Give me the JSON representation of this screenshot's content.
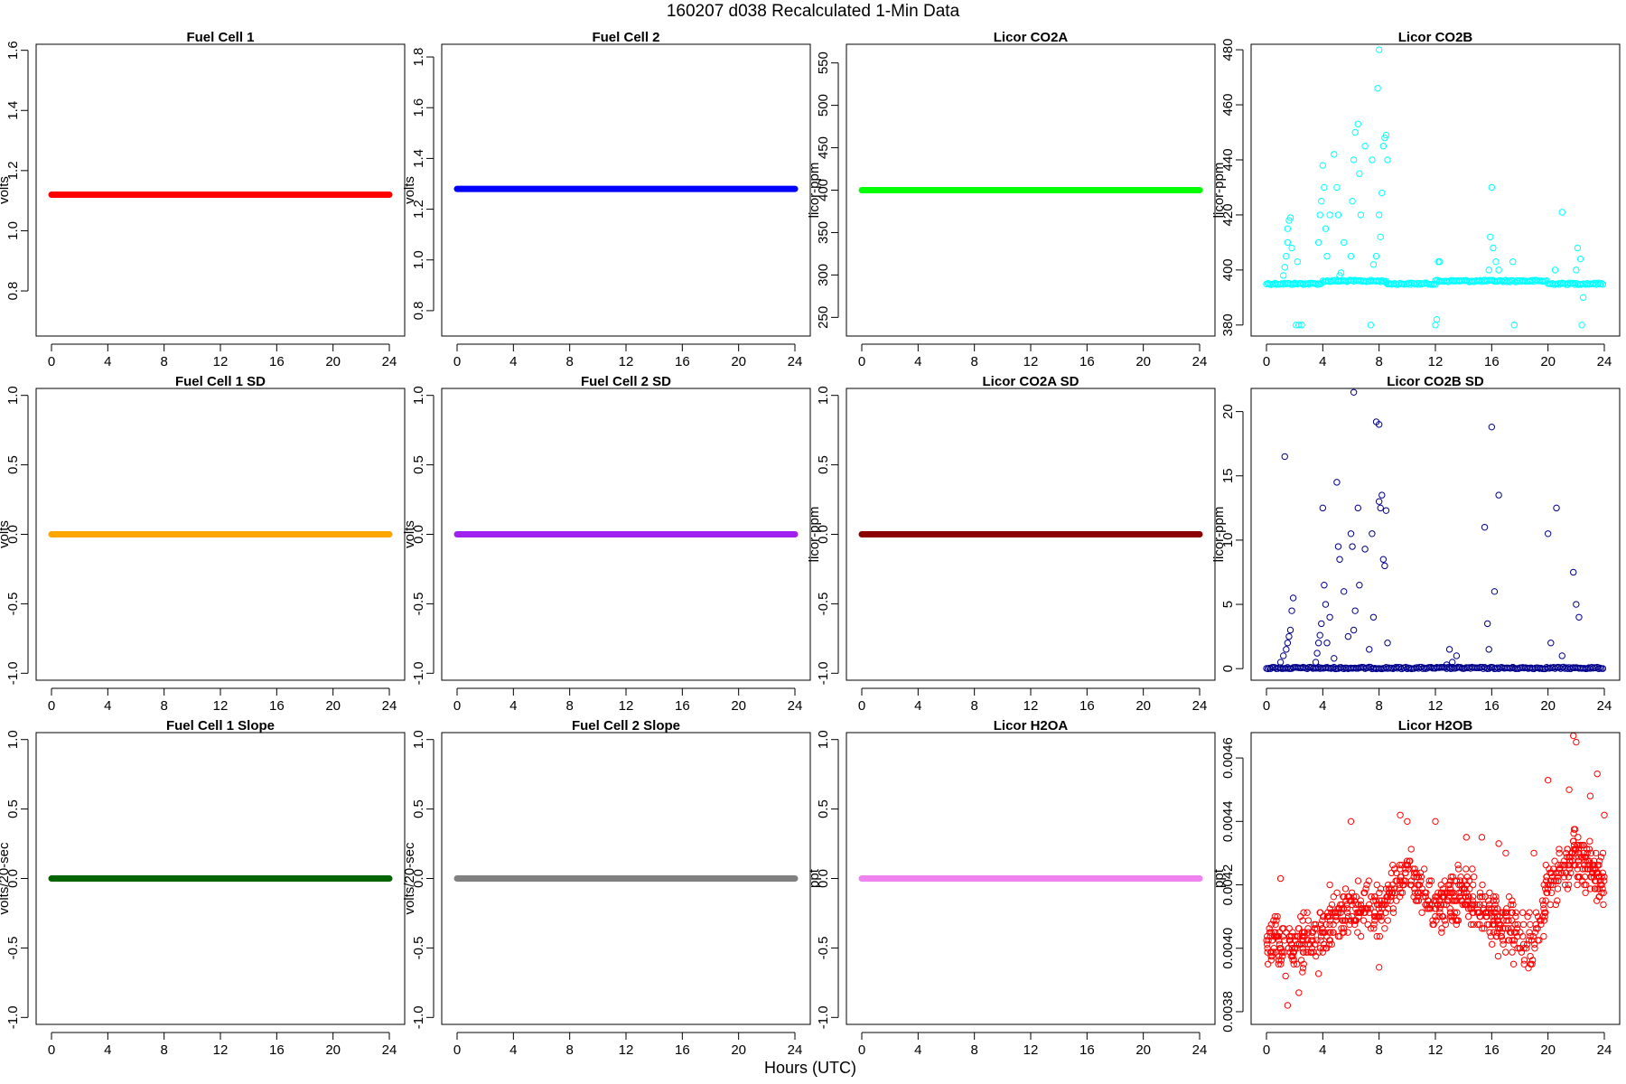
{
  "title": "160207   d038   Recalculated 1-Min Data",
  "xlabel": "Hours (UTC)",
  "chart_data": [
    {
      "type": "scatter",
      "title": "Fuel Cell 1",
      "ylabel": "volts",
      "xlim": [
        0,
        24
      ],
      "ylim": [
        0.65,
        1.62
      ],
      "yticks": [
        "0.8",
        "1.0",
        "1.2",
        "1.4",
        "1.6"
      ],
      "xticks": [
        "0",
        "4",
        "8",
        "12",
        "16",
        "20",
        "24"
      ],
      "color": "#ff0000",
      "marker": "filled",
      "series": [
        {
          "x": [
            0,
            24
          ],
          "y": [
            1.12,
            1.12
          ]
        }
      ]
    },
    {
      "type": "scatter",
      "title": "Fuel Cell 2",
      "ylabel": "volts",
      "xlim": [
        0,
        24
      ],
      "ylim": [
        0.7,
        1.85
      ],
      "yticks": [
        "0.8",
        "1.0",
        "1.2",
        "1.4",
        "1.6",
        "1.8"
      ],
      "xticks": [
        "0",
        "4",
        "8",
        "12",
        "16",
        "20",
        "24"
      ],
      "color": "#0000ff",
      "marker": "filled",
      "series": [
        {
          "x": [
            0,
            24
          ],
          "y": [
            1.28,
            1.28
          ]
        }
      ]
    },
    {
      "type": "scatter",
      "title": "Licor CO2A",
      "ylabel": "licor-ppm",
      "xlim": [
        0,
        24
      ],
      "ylim": [
        228,
        572
      ],
      "yticks": [
        "250",
        "300",
        "350",
        "400",
        "450",
        "500",
        "550"
      ],
      "xticks": [
        "0",
        "4",
        "8",
        "12",
        "16",
        "20",
        "24"
      ],
      "color": "#00ff00",
      "marker": "filled",
      "series": [
        {
          "x": [
            0,
            24
          ],
          "y": [
            400,
            400
          ]
        }
      ]
    },
    {
      "type": "scatter",
      "title": "Licor CO2B",
      "ylabel": "licor-ppm",
      "xlim": [
        0,
        24
      ],
      "ylim": [
        376,
        482
      ],
      "yticks": [
        "380",
        "400",
        "420",
        "440",
        "460",
        "480"
      ],
      "xticks": [
        "0",
        "4",
        "8",
        "12",
        "16",
        "20",
        "24"
      ],
      "color": "#00ffff",
      "marker": "open",
      "baseline": [
        {
          "from": 0,
          "to": 4,
          "y": 395
        },
        {
          "from": 4,
          "to": 8.5,
          "y": 396
        },
        {
          "from": 8.5,
          "to": 12,
          "y": 395
        },
        {
          "from": 12,
          "to": 20,
          "y": 396
        },
        {
          "from": 20,
          "to": 24,
          "y": 395
        }
      ],
      "series": [
        {
          "x": [
            1.2,
            1.3,
            1.4,
            1.5,
            1.6,
            1.7,
            1.5,
            1.8,
            2.0,
            2.2,
            2.3,
            2.5,
            3.7,
            3.8,
            3.9,
            4.0,
            4.1,
            4.2,
            4.3,
            4.5,
            4.8,
            5.0,
            5.1,
            5.2,
            5.3,
            5.5,
            6.0,
            6.1,
            6.2,
            6.3,
            6.5,
            6.6,
            6.7,
            7.0,
            7.5,
            7.6,
            7.8,
            8.0,
            8.1,
            8.2,
            8.3,
            8.4,
            8.5,
            8.6,
            7.9,
            8.0,
            12.0,
            12.1,
            12.2,
            12.3,
            15.8,
            15.9,
            16.0,
            16.1,
            16.3,
            16.5,
            17.5,
            17.6,
            20.5,
            21.0,
            22.0,
            22.1,
            22.3,
            22.4,
            22.5,
            2.1,
            7.4
          ],
          "y": [
            398,
            401,
            405,
            410,
            418,
            419,
            415,
            408,
            395,
            403,
            380,
            380,
            410,
            420,
            425,
            438,
            430,
            415,
            405,
            420,
            442,
            430,
            420,
            398,
            399,
            410,
            405,
            425,
            440,
            450,
            453,
            435,
            420,
            445,
            440,
            402,
            405,
            420,
            412,
            428,
            445,
            448,
            449,
            440,
            466,
            480,
            380,
            382,
            403,
            403,
            400,
            412,
            430,
            408,
            403,
            400,
            403,
            380,
            400,
            421,
            400,
            408,
            404,
            380,
            390,
            380,
            380
          ]
        }
      ]
    },
    {
      "type": "scatter",
      "title": "Fuel Cell 1 SD",
      "ylabel": "volts",
      "xlim": [
        0,
        24
      ],
      "ylim": [
        -1.05,
        1.05
      ],
      "yticks": [
        "-1.0",
        "-0.5",
        "0.0",
        "0.5",
        "1.0"
      ],
      "xticks": [
        "0",
        "4",
        "8",
        "12",
        "16",
        "20",
        "24"
      ],
      "color": "#ffa500",
      "marker": "filled",
      "series": [
        {
          "x": [
            0,
            24
          ],
          "y": [
            0,
            0
          ]
        }
      ]
    },
    {
      "type": "scatter",
      "title": "Fuel Cell 2 SD",
      "ylabel": "volts",
      "xlim": [
        0,
        24
      ],
      "ylim": [
        -1.05,
        1.05
      ],
      "yticks": [
        "-1.0",
        "-0.5",
        "0.0",
        "0.5",
        "1.0"
      ],
      "xticks": [
        "0",
        "4",
        "8",
        "12",
        "16",
        "20",
        "24"
      ],
      "color": "#a020f0",
      "marker": "filled",
      "series": [
        {
          "x": [
            0,
            24
          ],
          "y": [
            0,
            0
          ]
        }
      ]
    },
    {
      "type": "scatter",
      "title": "Licor CO2A SD",
      "ylabel": "licor-ppm",
      "xlim": [
        0,
        24
      ],
      "ylim": [
        -1.05,
        1.05
      ],
      "yticks": [
        "-1.0",
        "-0.5",
        "0.0",
        "0.5",
        "1.0"
      ],
      "xticks": [
        "0",
        "4",
        "8",
        "12",
        "16",
        "20",
        "24"
      ],
      "color": "#8b0000",
      "marker": "filled",
      "series": [
        {
          "x": [
            0,
            24
          ],
          "y": [
            0,
            0
          ]
        }
      ]
    },
    {
      "type": "scatter",
      "title": "Licor CO2B SD",
      "ylabel": "licor-ppm",
      "xlim": [
        0,
        24
      ],
      "ylim": [
        -0.9,
        21.8
      ],
      "yticks": [
        "0",
        "5",
        "10",
        "15",
        "20"
      ],
      "xticks": [
        "0",
        "4",
        "8",
        "12",
        "16",
        "20",
        "24"
      ],
      "color": "#00008b",
      "marker": "open",
      "baseline": [
        {
          "from": 0,
          "to": 24,
          "y": 0.05
        }
      ],
      "series": [
        {
          "x": [
            1.0,
            1.2,
            1.4,
            1.5,
            1.6,
            1.7,
            1.8,
            1.9,
            1.3,
            3.5,
            3.6,
            3.7,
            3.8,
            3.9,
            4.0,
            4.1,
            4.2,
            4.3,
            4.5,
            4.8,
            5.0,
            5.1,
            5.2,
            5.5,
            5.8,
            6.0,
            6.1,
            6.2,
            6.3,
            6.5,
            6.6,
            7.0,
            7.3,
            7.5,
            7.6,
            7.8,
            8.0,
            8.1,
            8.2,
            8.3,
            8.4,
            8.5,
            8.6,
            8.0,
            6.2,
            12.8,
            13.0,
            13.2,
            13.5,
            15.5,
            15.7,
            15.8,
            16.0,
            16.2,
            16.5,
            20.0,
            20.2,
            20.6,
            21.0,
            21.8,
            22.0,
            22.2
          ],
          "y": [
            0.5,
            1.0,
            1.5,
            2.0,
            2.5,
            3.0,
            4.5,
            5.5,
            16.5,
            0.5,
            1.2,
            2.0,
            2.6,
            3.5,
            12.5,
            6.5,
            5.0,
            2.0,
            4.0,
            0.8,
            14.5,
            9.5,
            8.5,
            6.0,
            2.5,
            10.5,
            9.5,
            3.0,
            4.5,
            12.5,
            6.5,
            9.3,
            1.5,
            10.5,
            4.0,
            19.2,
            13.0,
            12.5,
            13.5,
            8.5,
            8.0,
            12.3,
            2.0,
            19.0,
            21.5,
            0.3,
            1.5,
            0.5,
            1.0,
            11.0,
            3.5,
            1.5,
            18.8,
            6.0,
            13.5,
            10.5,
            2.0,
            12.5,
            1.0,
            7.5,
            5.0,
            4.0
          ]
        }
      ]
    },
    {
      "type": "scatter",
      "title": "Fuel Cell 1 Slope",
      "ylabel": "volts/20-sec",
      "xlim": [
        0,
        24
      ],
      "ylim": [
        -1.05,
        1.05
      ],
      "yticks": [
        "-1.0",
        "-0.5",
        "0.0",
        "0.5",
        "1.0"
      ],
      "xticks": [
        "0",
        "4",
        "8",
        "12",
        "16",
        "20",
        "24"
      ],
      "color": "#006400",
      "marker": "filled",
      "series": [
        {
          "x": [
            0,
            24
          ],
          "y": [
            0,
            0
          ]
        }
      ]
    },
    {
      "type": "scatter",
      "title": "Fuel Cell 2 Slope",
      "ylabel": "volts/20-sec",
      "xlim": [
        0,
        24
      ],
      "ylim": [
        -1.05,
        1.05
      ],
      "yticks": [
        "-1.0",
        "-0.5",
        "0.0",
        "0.5",
        "1.0"
      ],
      "xticks": [
        "0",
        "4",
        "8",
        "12",
        "16",
        "20",
        "24"
      ],
      "color": "#808080",
      "marker": "filled",
      "series": [
        {
          "x": [
            0,
            24
          ],
          "y": [
            0,
            0
          ]
        }
      ]
    },
    {
      "type": "scatter",
      "title": "Licor H2OA",
      "ylabel": "ppt",
      "xlim": [
        0,
        24
      ],
      "ylim": [
        -1.05,
        1.05
      ],
      "yticks": [
        "-1.0",
        "-0.5",
        "0.0",
        "0.5",
        "1.0"
      ],
      "xticks": [
        "0",
        "4",
        "8",
        "12",
        "16",
        "20",
        "24"
      ],
      "color": "#ee82ee",
      "marker": "filled",
      "series": [
        {
          "x": [
            0,
            24
          ],
          "y": [
            0,
            0
          ]
        }
      ]
    },
    {
      "type": "scatter",
      "title": "Licor H2OB",
      "ylabel": "ppt",
      "xlim": [
        0,
        24
      ],
      "ylim": [
        0.00376,
        0.00468
      ],
      "yticks": [
        "0.0038",
        "0.0040",
        "0.0042",
        "0.0044",
        "0.0046"
      ],
      "xticks": [
        "0",
        "4",
        "8",
        "12",
        "16",
        "20",
        "24"
      ],
      "color": "#ff0000",
      "marker": "open",
      "trend": {
        "x": [
          0,
          2,
          4,
          6,
          8,
          10,
          12,
          14,
          16,
          18,
          19,
          20,
          22,
          24
        ],
        "y": [
          0.00403,
          0.004,
          0.00405,
          0.00412,
          0.00412,
          0.00425,
          0.00412,
          0.00418,
          0.0041,
          0.00405,
          0.004,
          0.0042,
          0.0043,
          0.0042
        ],
        "spread": 8e-05,
        "n": 900
      },
      "series": [
        {
          "x": [
            1.0,
            1.5,
            2.3,
            3.7,
            4.5,
            6.0,
            8.0,
            9.5,
            10.0,
            12.0,
            14.2,
            15.3,
            16.5,
            17.0,
            18.3,
            19.0,
            20.0,
            21.5,
            21.8,
            22.0,
            23.0,
            23.5,
            24.0
          ],
          "y": [
            0.00422,
            0.00382,
            0.00386,
            0.00392,
            0.0042,
            0.0044,
            0.00394,
            0.00442,
            0.0044,
            0.0044,
            0.00435,
            0.00435,
            0.00433,
            0.0043,
            0.00395,
            0.0043,
            0.00453,
            0.0045,
            0.00467,
            0.00465,
            0.00448,
            0.00455,
            0.00442
          ]
        }
      ]
    }
  ]
}
